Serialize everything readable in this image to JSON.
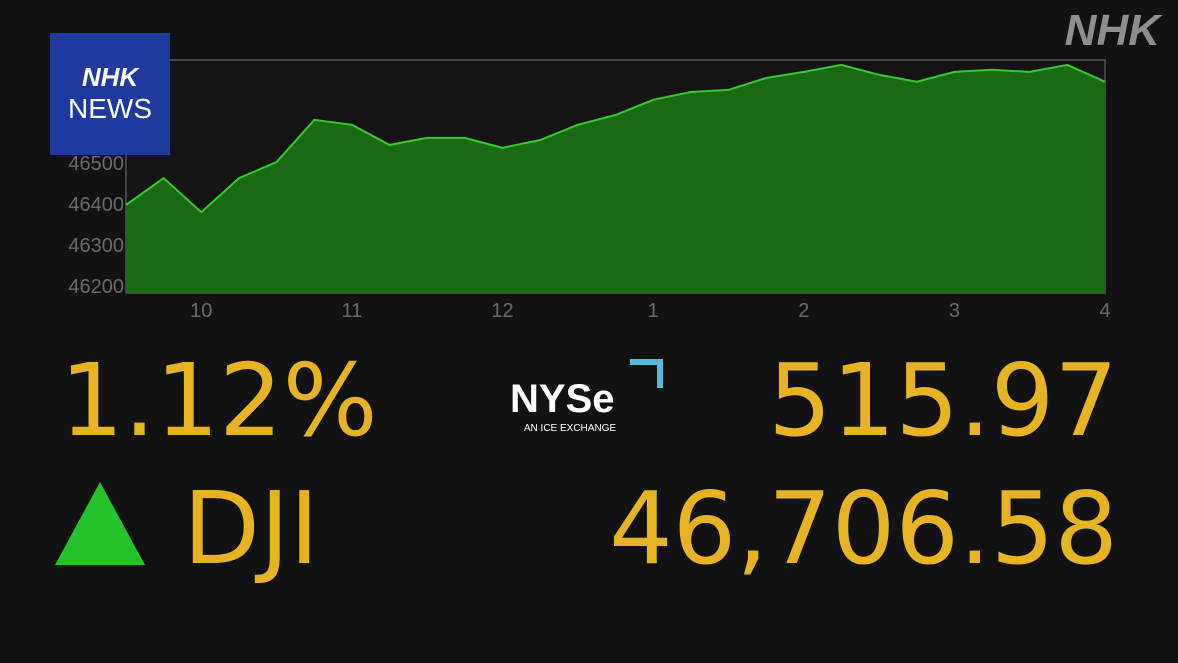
{
  "chart_data": {
    "type": "area",
    "x": [
      9.5,
      9.75,
      10.0,
      10.25,
      10.5,
      10.75,
      11.0,
      11.25,
      11.5,
      11.75,
      12.0,
      12.25,
      12.5,
      12.75,
      13.0,
      13.25,
      13.5,
      13.75,
      14.0,
      14.25,
      14.5,
      14.75,
      15.0,
      15.25,
      15.5,
      15.75,
      16.0
    ],
    "values": [
      46398,
      46463,
      46380,
      46463,
      46502,
      46605,
      46593,
      46544,
      46561,
      46561,
      46537,
      46556,
      46593,
      46617,
      46654,
      46673,
      46678,
      46707,
      46722,
      46739,
      46715,
      46698,
      46722,
      46727,
      46722,
      46739,
      46698
    ],
    "color": "#38c832",
    "xlim": [
      9.5,
      16
    ],
    "xticks": [
      10,
      11,
      12,
      {
        "value": 13,
        "label": "1"
      },
      {
        "value": 14,
        "label": "2"
      },
      {
        "value": 15,
        "label": "3"
      },
      {
        "value": 16,
        "label": "4"
      }
    ],
    "ylim": [
      46183,
      46751
    ],
    "yticks": [
      46200,
      46300,
      46400,
      46500
    ]
  },
  "branding": {
    "corner_logo": "NHK",
    "badge_top": "NHK",
    "badge_bottom": "NEWS"
  },
  "exchange": {
    "name": "NYSe",
    "tagline": "AN ICE EXCHANGE"
  },
  "quote": {
    "change_percent": "1.12%",
    "symbol": "DJI",
    "change": "515.97",
    "value": "46,706.58"
  }
}
